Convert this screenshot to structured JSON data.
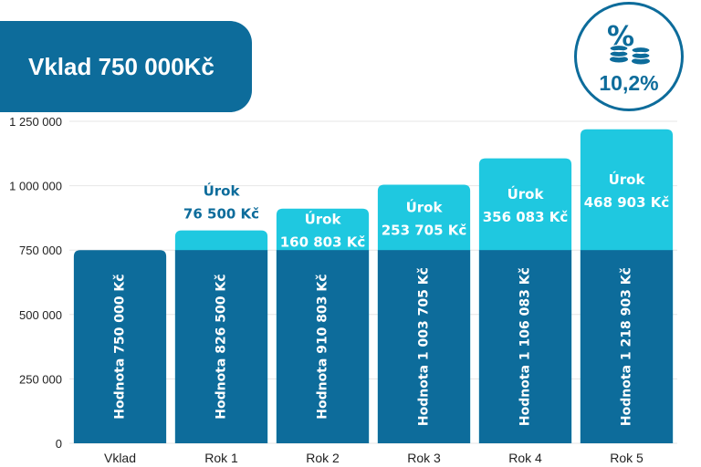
{
  "header": {
    "title": "Vklad 750 000Kč"
  },
  "rate_badge": {
    "icon": "percent-coins-icon",
    "value": "10,2%"
  },
  "colors": {
    "base": "#0d6c9b",
    "interest": "#1fc8e0",
    "interest_text_outside": "#0d6c9b",
    "grid": "#e6e6e6"
  },
  "chart_data": {
    "type": "bar",
    "stacked": true,
    "categories": [
      "Vklad",
      "Rok 1",
      "Rok 2",
      "Rok 3",
      "Rok 4",
      "Rok 5"
    ],
    "series": [
      {
        "values": [
          750000,
          750000,
          750000,
          750000,
          750000,
          750000
        ]
      },
      {
        "values": [
          0,
          76500,
          160803,
          253705,
          356083,
          468903
        ]
      }
    ],
    "totals": [
      750000,
      826500,
      910803,
      1003705,
      1106083,
      1218903
    ],
    "bar_labels": [
      "Hodnota 750 000 Kč",
      "Hodnota 826 500 Kč",
      "Hodnota 910 803 Kč",
      "Hodnota 1 003 705 Kč",
      "Hodnota 1 106 083 Kč",
      "Hodnota 1 218 903 Kč"
    ],
    "interest_labels": [
      null,
      {
        "title": "Úrok",
        "value": "76 500 Kč"
      },
      {
        "title": "Úrok",
        "value": "160 803 Kč"
      },
      {
        "title": "Úrok",
        "value": "253 705 Kč"
      },
      {
        "title": "Úrok",
        "value": "356 083 Kč"
      },
      {
        "title": "Úrok",
        "value": "468 903 Kč"
      }
    ],
    "yticks": [
      0,
      250000,
      500000,
      750000,
      1000000,
      1250000
    ],
    "ytick_labels": [
      "0",
      "250 000",
      "500 000",
      "750 000",
      "1 000 000",
      "1 250 000"
    ],
    "ylim": [
      0,
      1250000
    ],
    "grid": true
  }
}
